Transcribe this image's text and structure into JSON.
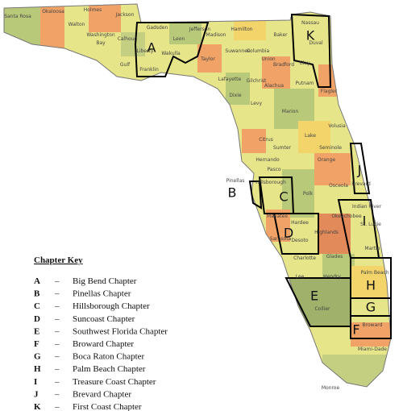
{
  "map": {
    "counties": [
      "Santa Rosa",
      "Okaloosa",
      "Walton",
      "Holmes",
      "Jackson",
      "Washington",
      "Bay",
      "Calhoun",
      "Gulf",
      "Liberty",
      "Gadsden",
      "Leon",
      "Wakulla",
      "Franklin",
      "Jefferson",
      "Madison",
      "Hamilton",
      "Taylor",
      "Suwannee",
      "Lafayette",
      "Columbia",
      "Baker",
      "Nassau",
      "Duval",
      "Clay",
      "Union",
      "Bradford",
      "Dixie",
      "Gilchrist",
      "Alachua",
      "Putnam",
      "Flagler",
      "Levy",
      "Marion",
      "Volusia",
      "Citrus",
      "Sumter",
      "Lake",
      "Seminole",
      "Hernando",
      "Orange",
      "Pasco",
      "Brevard",
      "Pinellas",
      "Hillsborough",
      "Polk",
      "Osceola",
      "Indian River",
      "Manatee",
      "Hardee",
      "Highlands",
      "Okeechobee",
      "St. Lucie",
      "Martin",
      "Sarasota",
      "Desoto",
      "Charlotte",
      "Glades",
      "Palm Beach",
      "Lee",
      "Hendry",
      "Collier",
      "Broward",
      "Miami-Dade",
      "Monroe"
    ],
    "chapter_letters": [
      "A",
      "B",
      "C",
      "D",
      "E",
      "F",
      "G",
      "H",
      "I",
      "J",
      "K"
    ]
  },
  "key": {
    "title": "Chapter Key",
    "rows": [
      {
        "letter": "A",
        "dash": "–",
        "name": "Big Bend Chapter"
      },
      {
        "letter": "B",
        "dash": "–",
        "name": "Pinellas Chapter"
      },
      {
        "letter": "C",
        "dash": "–",
        "name": "Hillsborough Chapter"
      },
      {
        "letter": "D",
        "dash": "–",
        "name": "Suncoast Chapter"
      },
      {
        "letter": "E",
        "dash": "–",
        "name": "Southwest Florida Chapter"
      },
      {
        "letter": "F",
        "dash": "–",
        "name": "Broward Chapter"
      },
      {
        "letter": "G",
        "dash": "–",
        "name": "Boca Raton Chapter"
      },
      {
        "letter": "H",
        "dash": "–",
        "name": "Palm Beach Chapter"
      },
      {
        "letter": "I",
        "dash": "–",
        "name": "Treasure Coast Chapter"
      },
      {
        "letter": "J",
        "dash": "–",
        "name": "Brevard Chapter"
      },
      {
        "letter": "K",
        "dash": "–",
        "name": "First Coast Chapter"
      }
    ]
  }
}
